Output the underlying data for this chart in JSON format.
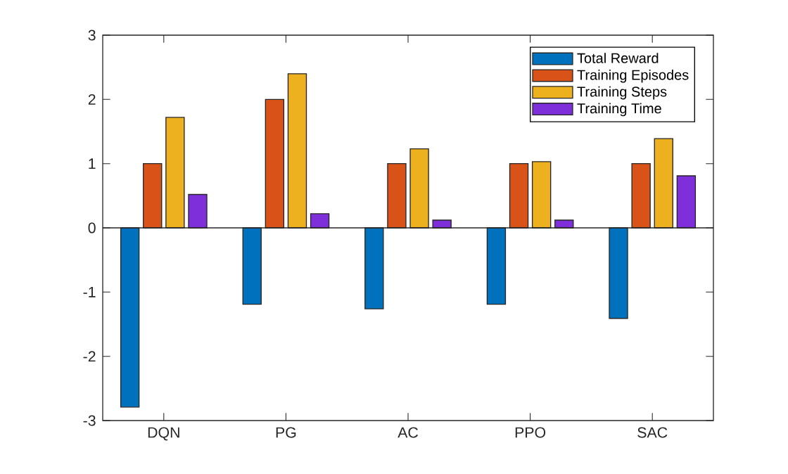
{
  "chart_data": {
    "type": "bar",
    "categories": [
      "DQN",
      "PG",
      "AC",
      "PPO",
      "SAC"
    ],
    "series": [
      {
        "name": "Total Reward",
        "color": "#0072bd",
        "values": [
          -2.79,
          -1.19,
          -1.26,
          -1.19,
          -1.41
        ]
      },
      {
        "name": "Training Episodes",
        "color": "#d95319",
        "values": [
          1,
          2,
          1,
          1,
          1
        ]
      },
      {
        "name": "Training Steps",
        "color": "#edb120",
        "values": [
          1.72,
          2.4,
          1.23,
          1.03,
          1.39
        ]
      },
      {
        "name": "Training Time",
        "color": "#7e2fd9",
        "values": [
          0.52,
          0.22,
          0.12,
          0.12,
          0.81
        ]
      }
    ],
    "ylim": [
      -3,
      3
    ],
    "yticks": [
      -3,
      -2,
      -1,
      0,
      1,
      2,
      3
    ],
    "legend": "top right"
  }
}
